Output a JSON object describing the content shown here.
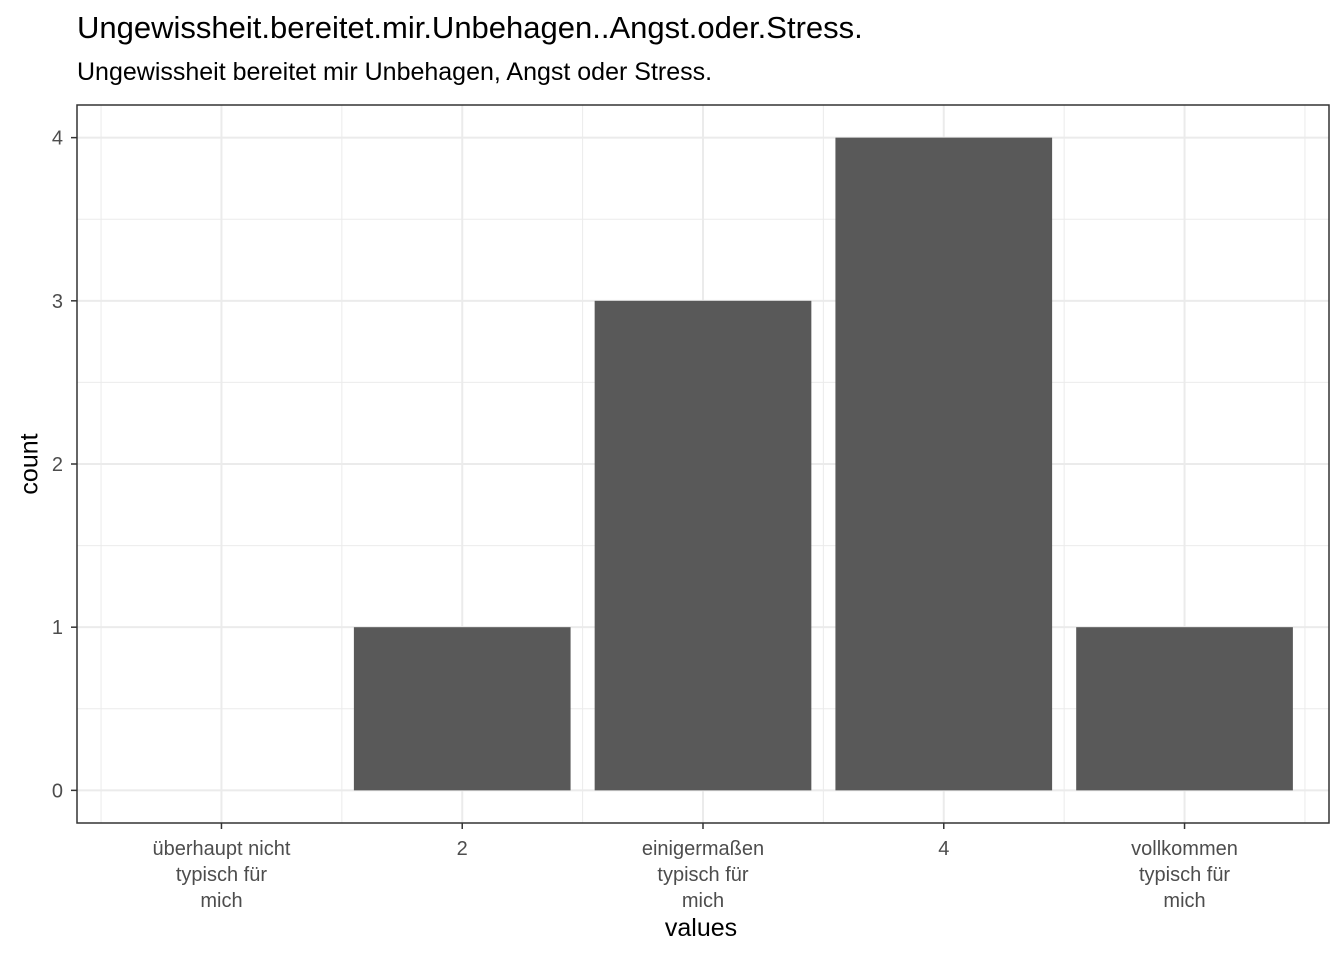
{
  "chart_data": {
    "type": "bar",
    "title": "Ungewissheit.bereitet.mir.Unbehagen..Angst.oder.Stress.",
    "subtitle": "Ungewissheit bereitet mir Unbehagen, Angst oder Stress.",
    "xlabel": "values",
    "ylabel": "count",
    "categories": [
      [
        "überhaupt nicht",
        "typisch für",
        "mich"
      ],
      [
        "2"
      ],
      [
        "einigermaßen",
        "typisch für",
        "mich"
      ],
      [
        "4"
      ],
      [
        "vollkommen",
        "typisch für",
        "mich"
      ]
    ],
    "values": [
      0,
      1,
      3,
      4,
      1
    ],
    "ylim": [
      -0.2,
      4.2
    ],
    "yticks": [
      0,
      1,
      2,
      3,
      4
    ],
    "grid": true,
    "bar_color": "#595959",
    "grid_color": "#ebebeb",
    "axis_color": "#333333"
  }
}
